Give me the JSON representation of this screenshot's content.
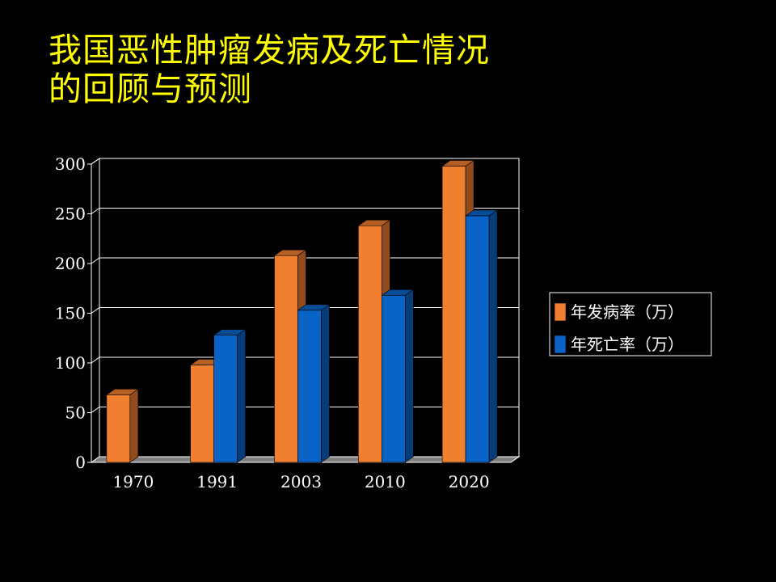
{
  "slide": {
    "title_line1": "我国恶性肿瘤发病及死亡情况",
    "title_line2": "的回顾与预测",
    "title_color": "#FFFF00",
    "background": "#000000"
  },
  "chart_data": {
    "type": "bar",
    "style": "3d-clustered-column",
    "categories": [
      "1970",
      "1991",
      "2003",
      "2010",
      "2020"
    ],
    "series": [
      {
        "name": "年发病率（万）",
        "values": [
          68,
          98,
          208,
          238,
          298
        ],
        "color": "#F07F30"
      },
      {
        "name": "年死亡率（万）",
        "values": [
          0,
          128,
          153,
          168,
          248
        ],
        "color": "#0A64C8"
      }
    ],
    "ylim": [
      0,
      300
    ],
    "yticks": [
      "0",
      "50",
      "100",
      "150",
      "200",
      "250",
      "300"
    ],
    "grid": true,
    "legend": "right",
    "title": "",
    "xlabel": "",
    "ylabel": ""
  }
}
